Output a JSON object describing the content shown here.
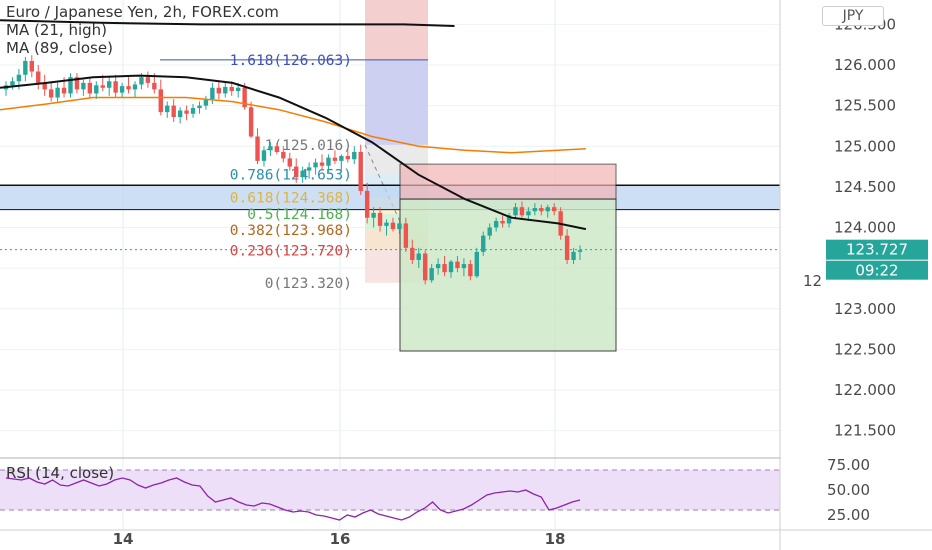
{
  "header": {
    "symbol_line": "Euro / Japanese Yen, 2h, FOREX.com",
    "ma21": "MA (21, high)",
    "ma89": "MA (89, close)",
    "currency_badge": "JPY"
  },
  "price_axis": {
    "ticks": [
      "126.500",
      "126.000",
      "125.500",
      "125.000",
      "124.500",
      "124.000",
      "123.000",
      "122.500",
      "122.000",
      "121.500"
    ],
    "partial_tick": "12",
    "last_price": "123.727",
    "countdown": "09:22"
  },
  "time_axis": {
    "ticks": [
      "14",
      "16",
      "18"
    ]
  },
  "fib_labels": [
    {
      "text": "1.618(126.063)",
      "color": "#3f51b5"
    },
    {
      "text": "1(125.016)",
      "color": "#787878"
    },
    {
      "text": "0.786(124.653)",
      "color": "#2b8fb0"
    },
    {
      "text": "0.618(124.368)",
      "color": "#e0b43c"
    },
    {
      "text": "0.5(124.168)",
      "color": "#4caf50"
    },
    {
      "text": "0.382(123.968)",
      "color": "#b4681e"
    },
    {
      "text": "0.236(123.720)",
      "color": "#d84343"
    },
    {
      "text": "0(123.320)",
      "color": "#787878"
    }
  ],
  "rsi": {
    "label": "RSI (14, close)",
    "ticks": [
      "75.00",
      "50.00",
      "25.00"
    ]
  },
  "colors": {
    "up": "#26a69a",
    "down": "#ef5350",
    "ma21": "#111111",
    "ma89": "#f57c00",
    "rsi": "#8e24aa",
    "accent": "#26a69a"
  },
  "chart_data": {
    "type": "candlestick",
    "title": "Euro / Japanese Yen, 2h, FOREX.com",
    "ylim": [
      121.2,
      126.8
    ],
    "x_ticks": [
      "14",
      "16",
      "18"
    ],
    "last_price": 123.727,
    "ohlc": [
      [
        125.7,
        125.8,
        125.62,
        125.75
      ],
      [
        125.75,
        125.85,
        125.7,
        125.8
      ],
      [
        125.8,
        125.95,
        125.7,
        125.88
      ],
      [
        125.88,
        126.1,
        125.8,
        126.05
      ],
      [
        126.05,
        126.12,
        125.85,
        125.92
      ],
      [
        125.92,
        126.0,
        125.7,
        125.78
      ],
      [
        125.78,
        125.88,
        125.62,
        125.7
      ],
      [
        125.7,
        125.8,
        125.55,
        125.6
      ],
      [
        125.6,
        125.78,
        125.55,
        125.72
      ],
      [
        125.72,
        125.85,
        125.6,
        125.65
      ],
      [
        125.65,
        125.9,
        125.6,
        125.85
      ],
      [
        125.85,
        125.9,
        125.65,
        125.7
      ],
      [
        125.7,
        125.82,
        125.62,
        125.78
      ],
      [
        125.78,
        125.85,
        125.6,
        125.65
      ],
      [
        125.65,
        125.8,
        125.58,
        125.75
      ],
      [
        125.75,
        125.88,
        125.68,
        125.72
      ],
      [
        125.72,
        125.85,
        125.62,
        125.8
      ],
      [
        125.8,
        125.88,
        125.6,
        125.66
      ],
      [
        125.66,
        125.78,
        125.6,
        125.74
      ],
      [
        125.74,
        125.86,
        125.65,
        125.7
      ],
      [
        125.7,
        125.8,
        125.6,
        125.76
      ],
      [
        125.76,
        125.9,
        125.7,
        125.85
      ],
      [
        125.85,
        125.92,
        125.72,
        125.78
      ],
      [
        125.78,
        125.9,
        125.65,
        125.7
      ],
      [
        125.7,
        125.82,
        125.38,
        125.42
      ],
      [
        125.42,
        125.55,
        125.35,
        125.5
      ],
      [
        125.5,
        125.58,
        125.3,
        125.36
      ],
      [
        125.36,
        125.48,
        125.28,
        125.44
      ],
      [
        125.44,
        125.5,
        125.32,
        125.4
      ],
      [
        125.4,
        125.52,
        125.35,
        125.47
      ],
      [
        125.47,
        125.55,
        125.4,
        125.5
      ],
      [
        125.5,
        125.62,
        125.45,
        125.58
      ],
      [
        125.58,
        125.78,
        125.52,
        125.72
      ],
      [
        125.72,
        125.8,
        125.58,
        125.65
      ],
      [
        125.65,
        125.78,
        125.6,
        125.73
      ],
      [
        125.73,
        125.8,
        125.62,
        125.68
      ],
      [
        125.68,
        125.78,
        125.6,
        125.72
      ],
      [
        125.72,
        125.78,
        125.45,
        125.48
      ],
      [
        125.48,
        125.55,
        125.1,
        125.12
      ],
      [
        125.12,
        125.22,
        124.78,
        124.82
      ],
      [
        124.82,
        125.0,
        124.75,
        124.95
      ],
      [
        124.95,
        125.05,
        124.88,
        125.0
      ],
      [
        125.0,
        125.04,
        124.9,
        124.93
      ],
      [
        124.93,
        125.0,
        124.8,
        124.85
      ],
      [
        124.85,
        124.92,
        124.7,
        124.75
      ],
      [
        124.75,
        124.85,
        124.55,
        124.62
      ],
      [
        124.62,
        124.75,
        124.55,
        124.7
      ],
      [
        124.7,
        124.8,
        124.6,
        124.74
      ],
      [
        124.74,
        124.85,
        124.65,
        124.8
      ],
      [
        124.8,
        124.9,
        124.7,
        124.76
      ],
      [
        124.76,
        124.9,
        124.68,
        124.86
      ],
      [
        124.86,
        124.95,
        124.78,
        124.82
      ],
      [
        124.82,
        124.9,
        124.7,
        124.88
      ],
      [
        124.88,
        124.98,
        124.8,
        124.84
      ],
      [
        124.84,
        125.0,
        124.78,
        124.93
      ],
      [
        124.93,
        125.02,
        124.4,
        124.45
      ],
      [
        124.45,
        124.55,
        124.05,
        124.12
      ],
      [
        124.12,
        124.25,
        124.0,
        124.18
      ],
      [
        124.18,
        124.25,
        123.95,
        124.02
      ],
      [
        124.02,
        124.1,
        123.9,
        124.06
      ],
      [
        124.06,
        124.12,
        123.95,
        123.98
      ],
      [
        123.98,
        124.1,
        123.92,
        124.05
      ],
      [
        124.05,
        124.12,
        123.7,
        123.75
      ],
      [
        123.75,
        123.85,
        123.55,
        123.6
      ],
      [
        123.6,
        123.75,
        123.5,
        123.68
      ],
      [
        123.68,
        123.72,
        123.3,
        123.35
      ],
      [
        123.35,
        123.55,
        123.32,
        123.5
      ],
      [
        123.5,
        123.62,
        123.42,
        123.55
      ],
      [
        123.55,
        123.65,
        123.4,
        123.45
      ],
      [
        123.45,
        123.6,
        123.38,
        123.58
      ],
      [
        123.58,
        123.65,
        123.45,
        123.5
      ],
      [
        123.5,
        123.62,
        123.4,
        123.55
      ],
      [
        123.55,
        123.6,
        123.35,
        123.4
      ],
      [
        123.4,
        123.75,
        123.38,
        123.7
      ],
      [
        123.7,
        123.95,
        123.65,
        123.9
      ],
      [
        123.9,
        124.05,
        123.85,
        124.0
      ],
      [
        124.0,
        124.12,
        123.95,
        124.08
      ],
      [
        124.08,
        124.15,
        124.0,
        124.05
      ],
      [
        124.05,
        124.18,
        124.0,
        124.15
      ],
      [
        124.15,
        124.3,
        124.1,
        124.25
      ],
      [
        124.25,
        124.32,
        124.12,
        124.15
      ],
      [
        124.15,
        124.25,
        124.08,
        124.2
      ],
      [
        124.2,
        124.3,
        124.15,
        124.24
      ],
      [
        124.24,
        124.28,
        124.15,
        124.2
      ],
      [
        124.2,
        124.28,
        124.12,
        124.25
      ],
      [
        124.25,
        124.3,
        124.15,
        124.2
      ],
      [
        124.2,
        124.25,
        123.85,
        123.9
      ],
      [
        123.9,
        123.98,
        123.55,
        123.6
      ],
      [
        123.6,
        123.75,
        123.55,
        123.7
      ],
      [
        123.7,
        123.78,
        123.6,
        123.72
      ]
    ],
    "ma21": [
      [
        0,
        126.55
      ],
      [
        0.1,
        126.52
      ],
      [
        0.2,
        126.5
      ],
      [
        0.3,
        126.5
      ],
      [
        0.4,
        126.5
      ],
      [
        0.45,
        126.48
      ]
    ],
    "ma21_fit": [
      [
        0,
        125.72
      ],
      [
        0.05,
        125.78
      ],
      [
        0.1,
        125.85
      ],
      [
        0.15,
        125.87
      ],
      [
        0.2,
        125.85
      ],
      [
        0.25,
        125.78
      ],
      [
        0.3,
        125.6
      ],
      [
        0.35,
        125.35
      ],
      [
        0.4,
        125.05
      ],
      [
        0.45,
        124.65
      ],
      [
        0.5,
        124.35
      ],
      [
        0.55,
        124.12
      ],
      [
        0.6,
        124.05
      ],
      [
        0.63,
        123.98
      ]
    ],
    "ma89": [
      [
        0,
        125.45
      ],
      [
        0.05,
        125.52
      ],
      [
        0.1,
        125.6
      ],
      [
        0.2,
        125.6
      ],
      [
        0.25,
        125.55
      ],
      [
        0.3,
        125.45
      ],
      [
        0.35,
        125.3
      ],
      [
        0.4,
        125.12
      ],
      [
        0.45,
        125.0
      ],
      [
        0.5,
        124.95
      ],
      [
        0.55,
        124.92
      ],
      [
        0.63,
        124.97
      ]
    ],
    "fib_levels": [
      126.063,
      125.016,
      124.653,
      124.368,
      124.168,
      123.968,
      123.72,
      123.32
    ],
    "resistance_zone": [
      124.22,
      124.52
    ],
    "position": {
      "entry": 124.35,
      "stop": 124.78,
      "target": 122.48
    },
    "rsi_values": [
      62,
      61,
      60,
      62,
      58,
      56,
      60,
      55,
      54,
      57,
      60,
      57,
      54,
      56,
      60,
      62,
      60,
      55,
      52,
      55,
      57,
      60,
      62,
      58,
      55,
      54,
      44,
      38,
      40,
      42,
      38,
      35,
      34,
      37,
      36,
      33,
      30,
      28,
      29,
      28,
      25,
      24,
      22,
      20,
      25,
      23,
      27,
      30,
      26,
      24,
      22,
      20,
      23,
      28,
      32,
      38,
      30,
      27,
      29,
      31,
      35,
      40,
      45,
      47,
      48,
      49,
      48,
      50,
      46,
      43,
      30,
      32,
      35,
      38,
      40
    ]
  }
}
